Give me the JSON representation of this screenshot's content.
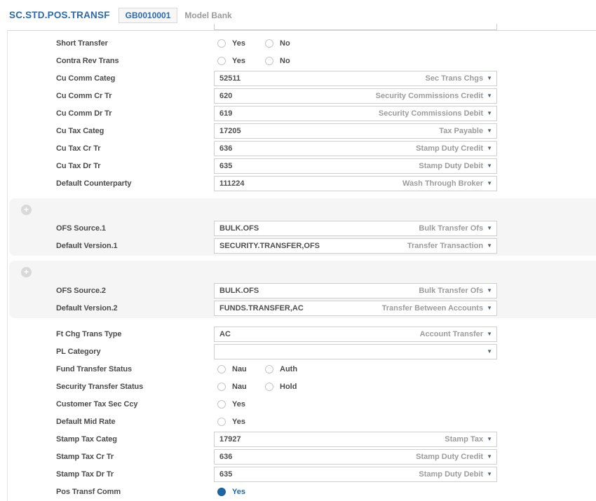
{
  "header": {
    "title": "SC.STD.POS.TRANSF",
    "record_id": "GB0010001",
    "company": "Model Bank"
  },
  "colors": {
    "accent_blue": "#1e67a7",
    "title_blue": "#2a6aad",
    "label_gray": "#4b4b4b",
    "hint_gray": "#9c9c9c",
    "section_bg": "#f5f5f5",
    "field_border": "#cfcfcf"
  },
  "ui": {
    "dropdown_arrow": "▼",
    "expand_icon": "+"
  },
  "form": {
    "rows_top": [
      {
        "label": "Short Transfer",
        "options": [
          {
            "label": "Yes",
            "selected": false
          },
          {
            "label": "No",
            "selected": false
          }
        ]
      },
      {
        "label": "Contra Rev Trans",
        "options": [
          {
            "label": "Yes",
            "selected": false
          },
          {
            "label": "No",
            "selected": false
          }
        ]
      },
      {
        "label": "Cu Comm Categ",
        "value": "52511",
        "hint": "Sec Trans Chgs"
      },
      {
        "label": "Cu Comm Cr Tr",
        "value": "620",
        "hint": "Security Commissions Credit"
      },
      {
        "label": "Cu Comm Dr Tr",
        "value": "619",
        "hint": "Security Commissions Debit"
      },
      {
        "label": "Cu Tax Categ",
        "value": "17205",
        "hint": "Tax Payable"
      },
      {
        "label": "Cu Tax Cr Tr",
        "value": "636",
        "hint": "Stamp Duty Credit"
      },
      {
        "label": "Cu Tax Dr Tr",
        "value": "635",
        "hint": "Stamp Duty Debit"
      },
      {
        "label": "Default Counterparty",
        "value": "111224",
        "hint": "Wash Through Broker"
      }
    ],
    "sections": [
      {
        "rows": [
          {
            "label": "OFS Source.1",
            "value": "BULK.OFS",
            "hint": "Bulk Transfer Ofs"
          },
          {
            "label": "Default Version.1",
            "value": "SECURITY.TRANSFER,OFS",
            "hint": "Transfer Transaction"
          }
        ]
      },
      {
        "rows": [
          {
            "label": "OFS Source.2",
            "value": "BULK.OFS",
            "hint": "Bulk Transfer Ofs"
          },
          {
            "label": "Default Version.2",
            "value": "FUNDS.TRANSFER,AC",
            "hint": "Transfer Between Accounts"
          }
        ]
      }
    ],
    "rows_bottom": [
      {
        "label": "Ft Chg Trans Type",
        "value": "AC",
        "hint": "Account Transfer"
      },
      {
        "label": "PL Category",
        "value": "",
        "hint": ""
      },
      {
        "label": "Fund Transfer Status",
        "options": [
          {
            "label": "Nau",
            "selected": false
          },
          {
            "label": "Auth",
            "selected": false
          }
        ]
      },
      {
        "label": "Security Transfer Status",
        "options": [
          {
            "label": "Nau",
            "selected": false
          },
          {
            "label": "Hold",
            "selected": false
          }
        ]
      },
      {
        "label": "Customer Tax Sec Ccy",
        "options": [
          {
            "label": "Yes",
            "selected": false
          }
        ]
      },
      {
        "label": "Default Mid Rate",
        "options": [
          {
            "label": "Yes",
            "selected": false
          }
        ]
      },
      {
        "label": "Stamp Tax Categ",
        "value": "17927",
        "hint": "Stamp Tax"
      },
      {
        "label": "Stamp Tax Cr Tr",
        "value": "636",
        "hint": "Stamp Duty Credit"
      },
      {
        "label": "Stamp Tax Dr Tr",
        "value": "635",
        "hint": "Stamp Duty Debit"
      },
      {
        "label": "Pos Transf Comm",
        "options": [
          {
            "label": "Yes",
            "selected": true
          }
        ]
      }
    ]
  }
}
